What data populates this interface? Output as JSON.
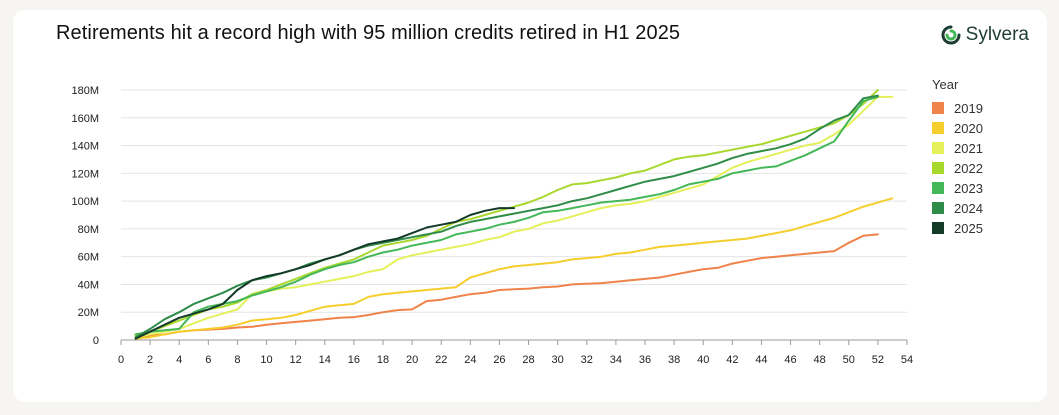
{
  "header": {
    "title": "Retirements hit a record high with 95 million credits retired in H1 2025",
    "brand": "Sylvera",
    "brand_color": "#1d3d33"
  },
  "chart_data": {
    "type": "line",
    "title": "Retirements hit a record high with 95 million credits retired in H1 2025",
    "xlabel": "",
    "ylabel": "",
    "xlim": [
      0,
      54
    ],
    "ylim": [
      0,
      180
    ],
    "x_ticks": [
      0,
      2,
      4,
      6,
      8,
      10,
      12,
      14,
      16,
      18,
      20,
      22,
      24,
      26,
      28,
      30,
      32,
      34,
      36,
      38,
      40,
      42,
      44,
      46,
      48,
      50,
      52,
      54
    ],
    "y_ticks": [
      {
        "value": 0,
        "label": "0"
      },
      {
        "value": 20,
        "label": "20M"
      },
      {
        "value": 40,
        "label": "40M"
      },
      {
        "value": 60,
        "label": "60M"
      },
      {
        "value": 80,
        "label": "80M"
      },
      {
        "value": 100,
        "label": "100M"
      },
      {
        "value": 120,
        "label": "120M"
      },
      {
        "value": 140,
        "label": "140M"
      },
      {
        "value": 160,
        "label": "160M"
      },
      {
        "value": 180,
        "label": "180M"
      }
    ],
    "grid": "horizontal",
    "legend_title": "Year",
    "legend_position": "right",
    "series": [
      {
        "name": "2019",
        "color": "#f0834a",
        "x": [
          1,
          2,
          3,
          4,
          5,
          6,
          7,
          8,
          9,
          10,
          11,
          12,
          13,
          14,
          15,
          16,
          17,
          18,
          19,
          20,
          21,
          22,
          23,
          24,
          25,
          26,
          27,
          28,
          29,
          30,
          31,
          32,
          33,
          34,
          35,
          36,
          37,
          38,
          39,
          40,
          41,
          42,
          43,
          44,
          45,
          46,
          47,
          48,
          49,
          50,
          51,
          52
        ],
        "values": [
          2,
          3,
          4,
          6,
          7,
          7.5,
          8,
          9,
          9.5,
          11,
          12,
          13,
          14,
          15,
          16,
          16.5,
          18,
          20,
          21.5,
          22,
          28,
          29,
          31,
          33,
          34,
          36,
          36.5,
          37,
          38,
          38.5,
          40,
          40.5,
          41,
          42,
          43,
          44,
          45,
          47,
          49,
          51,
          52,
          55,
          57,
          59,
          60,
          61,
          62,
          63,
          64,
          70,
          75,
          76
        ]
      },
      {
        "name": "2020",
        "color": "#f5ce2e",
        "x": [
          1,
          2,
          3,
          4,
          5,
          6,
          7,
          8,
          9,
          10,
          11,
          12,
          13,
          14,
          15,
          16,
          17,
          18,
          19,
          20,
          21,
          22,
          23,
          24,
          25,
          26,
          27,
          28,
          29,
          30,
          31,
          32,
          33,
          34,
          35,
          36,
          37,
          38,
          39,
          40,
          41,
          42,
          43,
          44,
          45,
          46,
          47,
          48,
          49,
          50,
          51,
          52,
          53
        ],
        "values": [
          1,
          2,
          4,
          6,
          7,
          8,
          9,
          11,
          14,
          15,
          16,
          18,
          21,
          24,
          25,
          26,
          31,
          33,
          34,
          35,
          36,
          37,
          38,
          45,
          48,
          51,
          53,
          54,
          55,
          56,
          58,
          59,
          60,
          62,
          63,
          65,
          67,
          68,
          69,
          70,
          71,
          72,
          73,
          75,
          77,
          79,
          82,
          85,
          88,
          92,
          96,
          99,
          102
        ]
      },
      {
        "name": "2021",
        "color": "#e4f05a",
        "x": [
          1,
          2,
          3,
          4,
          5,
          6,
          7,
          8,
          9,
          10,
          11,
          12,
          13,
          14,
          15,
          16,
          17,
          18,
          19,
          20,
          21,
          22,
          23,
          24,
          25,
          26,
          27,
          28,
          29,
          30,
          31,
          32,
          33,
          34,
          35,
          36,
          37,
          38,
          39,
          40,
          41,
          42,
          43,
          44,
          45,
          46,
          47,
          48,
          49,
          50,
          51,
          52,
          53
        ],
        "values": [
          2,
          4,
          6,
          8,
          12,
          16,
          19,
          22,
          33,
          35,
          37,
          38,
          40,
          42,
          44,
          46,
          49,
          51,
          58,
          61,
          63,
          65,
          67,
          69,
          72,
          74,
          78,
          80,
          84,
          86,
          89,
          92,
          95,
          97,
          98,
          100,
          103,
          106,
          109,
          112,
          118,
          124,
          128,
          131,
          134,
          137,
          140,
          142,
          148,
          155,
          165,
          175,
          175
        ]
      },
      {
        "name": "2022",
        "color": "#a8d82e",
        "x": [
          1,
          2,
          3,
          4,
          5,
          6,
          7,
          8,
          9,
          10,
          11,
          12,
          13,
          14,
          15,
          16,
          17,
          18,
          19,
          20,
          21,
          22,
          23,
          24,
          25,
          26,
          27,
          28,
          29,
          30,
          31,
          32,
          33,
          34,
          35,
          36,
          37,
          38,
          39,
          40,
          41,
          42,
          43,
          44,
          45,
          46,
          47,
          48,
          49,
          50,
          51,
          52
        ],
        "values": [
          3,
          6,
          10,
          14,
          18,
          22,
          24,
          27,
          33,
          36,
          40,
          44,
          48,
          52,
          55,
          58,
          63,
          68,
          70,
          72,
          75,
          80,
          85,
          87,
          90,
          93,
          96,
          99,
          103,
          108,
          112,
          113,
          115,
          117,
          120,
          122,
          126,
          130,
          132,
          133,
          135,
          137,
          139,
          141,
          144,
          147,
          150,
          153,
          156,
          162,
          170,
          180
        ]
      },
      {
        "name": "2023",
        "color": "#44b858",
        "x": [
          1,
          2,
          3,
          4,
          5,
          6,
          7,
          8,
          9,
          10,
          11,
          12,
          13,
          14,
          15,
          16,
          17,
          18,
          19,
          20,
          21,
          22,
          23,
          24,
          25,
          26,
          27,
          28,
          29,
          30,
          31,
          32,
          33,
          34,
          35,
          36,
          37,
          38,
          39,
          40,
          41,
          42,
          43,
          44,
          45,
          46,
          47,
          48,
          49,
          50,
          51,
          52
        ],
        "values": [
          4,
          6,
          7,
          8,
          20,
          24,
          26,
          28,
          32,
          35,
          38,
          42,
          47,
          51,
          54,
          56,
          60,
          63,
          65,
          68,
          70,
          72,
          76,
          78,
          80,
          83,
          85,
          88,
          92,
          93,
          95,
          97,
          99,
          100,
          101,
          103,
          105,
          108,
          112,
          114,
          116,
          120,
          122,
          124,
          125,
          129,
          133,
          138,
          143,
          158,
          172,
          175
        ]
      },
      {
        "name": "2024",
        "color": "#2e8c48",
        "x": [
          1,
          2,
          3,
          4,
          5,
          6,
          7,
          8,
          9,
          10,
          11,
          12,
          13,
          14,
          15,
          16,
          17,
          18,
          19,
          20,
          21,
          22,
          23,
          24,
          25,
          26,
          27,
          28,
          29,
          30,
          31,
          32,
          33,
          34,
          35,
          36,
          37,
          38,
          39,
          40,
          41,
          42,
          43,
          44,
          45,
          46,
          47,
          48,
          49,
          50,
          51,
          52
        ],
        "values": [
          2,
          8,
          15,
          20,
          26,
          30,
          34,
          39,
          43,
          45,
          48,
          51,
          55,
          58,
          61,
          65,
          68,
          70,
          72,
          74,
          76,
          78,
          82,
          85,
          87,
          89,
          91,
          93,
          95,
          97,
          100,
          102,
          105,
          108,
          111,
          114,
          116,
          118,
          121,
          124,
          127,
          131,
          134,
          136,
          138,
          141,
          145,
          152,
          158,
          162,
          174,
          176
        ]
      },
      {
        "name": "2025",
        "color": "#143a28",
        "x": [
          1,
          2,
          3,
          4,
          5,
          6,
          7,
          8,
          9,
          10,
          11,
          12,
          13,
          14,
          15,
          16,
          17,
          18,
          19,
          20,
          21,
          22,
          23,
          24,
          25,
          26,
          27
        ],
        "values": [
          1,
          6,
          11,
          16,
          19,
          22,
          26,
          36,
          43,
          46,
          48,
          51,
          54,
          58,
          61,
          65,
          69,
          71,
          73,
          77,
          81,
          83,
          85,
          90,
          93,
          95,
          95
        ]
      }
    ]
  }
}
